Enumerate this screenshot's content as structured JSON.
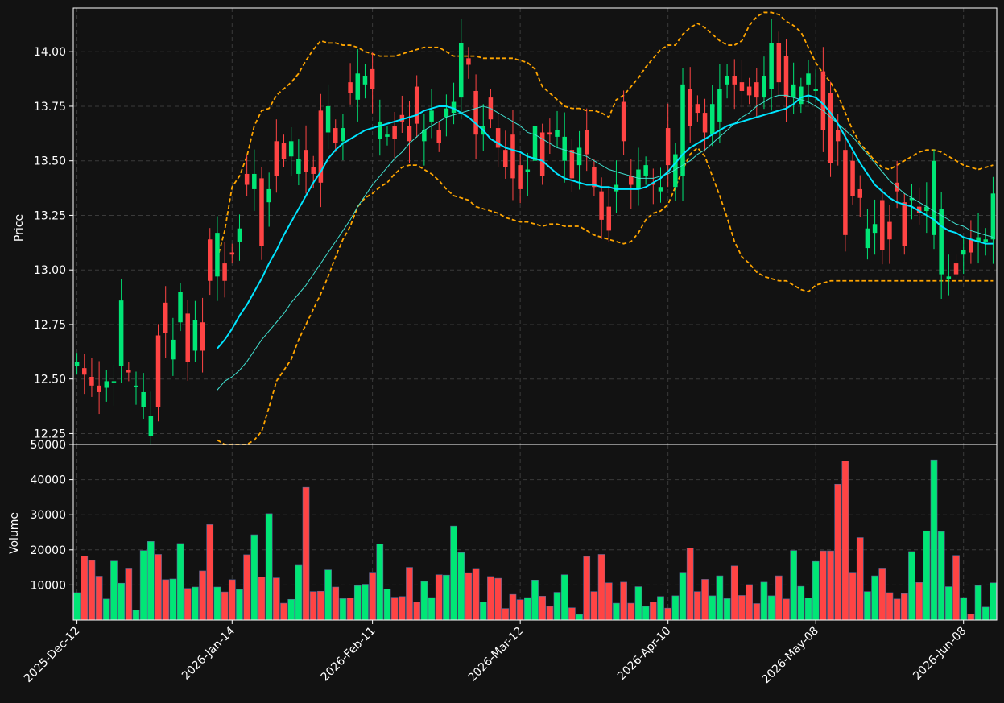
{
  "chart_data": {
    "type": "candlestick",
    "dates": [
      "2025-12-12",
      "2025-12-15",
      "2025-12-16",
      "2025-12-17",
      "2025-12-18",
      "2025-12-19",
      "2025-12-22",
      "2025-12-23",
      "2025-12-24",
      "2025-12-26",
      "2025-12-29",
      "2025-12-30",
      "2025-12-31",
      "2026-01-02",
      "2026-01-05",
      "2026-01-06",
      "2026-01-07",
      "2026-01-08",
      "2026-01-09",
      "2026-01-12",
      "2026-01-13",
      "2026-01-14",
      "2026-01-15",
      "2026-01-16",
      "2026-01-20",
      "2026-01-21",
      "2026-01-22",
      "2026-01-23",
      "2026-01-26",
      "2026-01-27",
      "2026-01-28",
      "2026-01-29",
      "2026-01-30",
      "2026-02-02",
      "2026-02-03",
      "2026-02-04",
      "2026-02-05",
      "2026-02-06",
      "2026-02-09",
      "2026-02-10",
      "2026-02-11",
      "2026-02-12",
      "2026-02-13",
      "2026-02-17",
      "2026-02-18",
      "2026-02-19",
      "2026-02-20",
      "2026-02-23",
      "2026-02-24",
      "2026-02-25",
      "2026-02-26",
      "2026-02-27",
      "2026-03-02",
      "2026-03-03",
      "2026-03-04",
      "2026-03-05",
      "2026-03-06",
      "2026-03-09",
      "2026-03-10",
      "2026-03-11",
      "2026-03-12",
      "2026-03-13",
      "2026-03-16",
      "2026-03-17",
      "2026-03-18",
      "2026-03-19",
      "2026-03-20",
      "2026-03-23",
      "2026-03-24",
      "2026-03-25",
      "2026-03-26",
      "2026-03-27",
      "2026-03-30",
      "2026-03-31",
      "2026-04-01",
      "2026-04-02",
      "2026-04-06",
      "2026-04-07",
      "2026-04-08",
      "2026-04-09",
      "2026-04-10",
      "2026-04-13",
      "2026-04-14",
      "2026-04-15",
      "2026-04-16",
      "2026-04-17",
      "2026-04-20",
      "2026-04-21",
      "2026-04-22",
      "2026-04-23",
      "2026-04-24",
      "2026-04-27",
      "2026-04-28",
      "2026-04-29",
      "2026-04-30",
      "2026-05-01",
      "2026-05-04",
      "2026-05-05",
      "2026-05-06",
      "2026-05-07",
      "2026-05-08",
      "2026-05-11",
      "2026-05-12",
      "2026-05-13",
      "2026-05-14",
      "2026-05-15",
      "2026-05-18",
      "2026-05-19",
      "2026-05-20",
      "2026-05-21",
      "2026-05-22",
      "2026-05-26",
      "2026-05-27",
      "2026-05-28",
      "2026-05-29",
      "2026-06-01",
      "2026-06-02",
      "2026-06-03",
      "2026-06-04",
      "2026-06-05",
      "2026-06-08",
      "2026-06-09",
      "2026-06-10",
      "2026-06-11",
      "2026-06-12"
    ],
    "open": [
      12.56,
      12.55,
      12.51,
      12.47,
      12.46,
      12.49,
      12.56,
      12.54,
      12.47,
      12.37,
      12.24,
      12.7,
      12.85,
      12.59,
      12.76,
      12.8,
      12.63,
      12.76,
      13.14,
      12.97,
      13.03,
      13.08,
      13.13,
      13.44,
      13.37,
      13.42,
      13.31,
      13.59,
      13.58,
      13.52,
      13.44,
      13.55,
      13.47,
      13.73,
      13.63,
      13.65,
      13.59,
      13.86,
      13.78,
      13.85,
      13.92,
      13.6,
      13.61,
      13.66,
      13.71,
      13.66,
      13.84,
      13.59,
      13.68,
      13.64,
      13.7,
      13.72,
      13.79,
      13.97,
      13.82,
      13.62,
      13.79,
      13.65,
      13.55,
      13.62,
      13.48,
      13.45,
      13.5,
      13.63,
      13.63,
      13.61,
      13.5,
      13.55,
      13.48,
      13.64,
      13.47,
      13.36,
      13.29,
      13.36,
      13.77,
      13.43,
      13.37,
      13.43,
      13.4,
      13.36,
      13.65,
      13.38,
      13.43,
      13.83,
      13.76,
      13.72,
      13.62,
      13.68,
      13.85,
      13.89,
      13.86,
      13.84,
      13.86,
      13.79,
      13.83,
      14.04,
      13.98,
      13.79,
      13.76,
      13.85,
      13.82,
      13.91,
      13.81,
      13.64,
      13.55,
      13.5,
      13.37,
      13.1,
      13.17,
      13.32,
      13.22,
      13.4,
      13.31,
      13.32,
      13.29,
      13.27,
      13.16,
      12.98,
      12.96,
      13.03,
      13.07,
      13.14,
      13.13,
      13.13,
      13.14
    ],
    "close": [
      12.58,
      12.52,
      12.47,
      12.44,
      12.49,
      12.49,
      12.86,
      12.53,
      12.47,
      12.44,
      12.33,
      12.37,
      12.71,
      12.68,
      12.9,
      12.58,
      12.77,
      12.63,
      12.95,
      13.17,
      12.95,
      13.07,
      13.19,
      13.39,
      13.44,
      13.11,
      13.37,
      13.43,
      13.51,
      13.59,
      13.51,
      13.45,
      13.44,
      13.4,
      13.75,
      13.58,
      13.65,
      13.81,
      13.9,
      13.89,
      13.83,
      13.68,
      13.62,
      13.6,
      13.68,
      13.59,
      13.67,
      13.64,
      13.73,
      13.58,
      13.74,
      13.77,
      14.04,
      13.94,
      13.62,
      13.66,
      13.69,
      13.56,
      13.47,
      13.42,
      13.37,
      13.46,
      13.66,
      13.43,
      13.62,
      13.64,
      13.61,
      13.42,
      13.56,
      13.53,
      13.38,
      13.23,
      13.18,
      13.39,
      13.59,
      13.39,
      13.46,
      13.48,
      13.39,
      13.38,
      13.48,
      13.53,
      13.85,
      13.66,
      13.72,
      13.63,
      13.76,
      13.83,
      13.89,
      13.85,
      13.82,
      13.8,
      13.79,
      13.89,
      14.04,
      13.86,
      13.79,
      13.85,
      13.84,
      13.9,
      13.83,
      13.64,
      13.49,
      13.59,
      13.16,
      13.34,
      13.33,
      13.19,
      13.21,
      13.09,
      13.14,
      13.36,
      13.11,
      13.33,
      13.26,
      13.29,
      13.5,
      13.28,
      12.97,
      12.98,
      13.09,
      13.08,
      13.15,
      13.14,
      13.35
    ]
  },
  "volume_values": [
    7800,
    18200,
    17000,
    12500,
    6000,
    16800,
    10500,
    14800,
    2800,
    19800,
    22400,
    18700,
    11500,
    11700,
    21800,
    9000,
    9400,
    14000,
    27200,
    9400,
    8000,
    11500,
    8700,
    18600,
    24300,
    12300,
    30300,
    12000,
    4800,
    5900,
    15600,
    37800,
    8100,
    8200,
    14300,
    9400,
    6100,
    6300,
    9800,
    10200,
    13600,
    21700,
    8800,
    6500,
    6700,
    15000,
    5100,
    11000,
    6400,
    12900,
    12800,
    26800,
    19200,
    13500,
    14700,
    5100,
    12400,
    11900,
    3300,
    7300,
    5800,
    6400,
    11400,
    6800,
    3900,
    7900,
    12900,
    3500,
    1600,
    18100,
    8100,
    18700,
    10600,
    4800,
    10800,
    4800,
    9500,
    3900,
    5100,
    6700,
    3400,
    6900,
    13600,
    20500,
    8100,
    11600,
    6900,
    12600,
    6100,
    15400,
    7000,
    10100,
    4700,
    10800,
    6900,
    12600,
    6000,
    19800,
    9600,
    6300,
    16700,
    19700,
    19700,
    38700,
    45300,
    13600,
    23500,
    8100,
    12600,
    14800,
    7800,
    6000,
    7500,
    19500,
    10700,
    25400,
    45600,
    25200,
    9500,
    18400,
    6400,
    1700,
    9800,
    3700,
    10600
  ],
  "sma_fast": [
    null,
    null,
    null,
    null,
    null,
    null,
    null,
    null,
    null,
    null,
    null,
    null,
    null,
    null,
    null,
    null,
    null,
    null,
    null,
    12.45,
    12.49,
    12.51,
    12.54,
    12.58,
    12.63,
    12.68,
    12.72,
    12.76,
    12.8,
    12.85,
    12.89,
    12.93,
    12.98,
    13.03,
    13.08,
    13.13,
    13.18,
    13.23,
    13.29,
    13.34,
    13.39,
    13.43,
    13.47,
    13.51,
    13.54,
    13.58,
    13.61,
    13.64,
    13.66,
    13.68,
    13.7,
    13.71,
    13.72,
    13.73,
    13.74,
    13.75,
    13.74,
    13.72,
    13.7,
    13.68,
    13.66,
    13.63,
    13.62,
    13.6,
    13.58,
    13.56,
    13.55,
    13.54,
    13.53,
    13.52,
    13.5,
    13.48,
    13.46,
    13.45,
    13.44,
    13.43,
    13.42,
    13.42,
    13.42,
    13.43,
    13.44,
    13.46,
    13.48,
    13.5,
    13.53,
    13.55,
    13.58,
    13.61,
    13.64,
    13.67,
    13.7,
    13.72,
    13.75,
    13.77,
    13.79,
    13.8,
    13.8,
    13.79,
    13.78,
    13.77,
    13.75,
    13.73,
    13.7,
    13.67,
    13.64,
    13.61,
    13.57,
    13.53,
    13.49,
    13.45,
    13.41,
    13.38,
    13.35,
    13.33,
    13.31,
    13.29,
    13.27,
    13.25,
    13.23,
    13.21,
    13.2,
    13.18,
    13.17,
    13.16,
    13.15
  ],
  "sma_slow": [
    null,
    null,
    null,
    null,
    null,
    null,
    null,
    null,
    null,
    null,
    null,
    null,
    null,
    null,
    null,
    null,
    null,
    null,
    null,
    12.64,
    12.68,
    12.73,
    12.79,
    12.84,
    12.9,
    12.96,
    13.03,
    13.09,
    13.16,
    13.22,
    13.28,
    13.34,
    13.4,
    13.45,
    13.51,
    13.55,
    13.58,
    13.6,
    13.62,
    13.64,
    13.65,
    13.66,
    13.67,
    13.68,
    13.69,
    13.7,
    13.71,
    13.73,
    13.74,
    13.75,
    13.75,
    13.74,
    13.72,
    13.7,
    13.67,
    13.64,
    13.6,
    13.58,
    13.56,
    13.55,
    13.54,
    13.52,
    13.51,
    13.5,
    13.47,
    13.44,
    13.42,
    13.41,
    13.4,
    13.39,
    13.39,
    13.38,
    13.38,
    13.37,
    13.37,
    13.37,
    13.37,
    13.38,
    13.4,
    13.42,
    13.45,
    13.49,
    13.53,
    13.56,
    13.58,
    13.6,
    13.62,
    13.64,
    13.66,
    13.67,
    13.68,
    13.69,
    13.7,
    13.71,
    13.72,
    13.73,
    13.74,
    13.76,
    13.79,
    13.8,
    13.79,
    13.76,
    13.72,
    13.67,
    13.61,
    13.55,
    13.49,
    13.44,
    13.39,
    13.36,
    13.33,
    13.31,
    13.3,
    13.29,
    13.27,
    13.25,
    13.23,
    13.2,
    13.18,
    13.17,
    13.15,
    13.14,
    13.13,
    13.12,
    13.12
  ],
  "bb_upper": [
    null,
    null,
    null,
    null,
    null,
    null,
    null,
    null,
    null,
    null,
    null,
    null,
    null,
    null,
    null,
    null,
    null,
    null,
    null,
    13.05,
    13.18,
    13.38,
    13.43,
    13.52,
    13.66,
    13.73,
    13.74,
    13.8,
    13.83,
    13.86,
    13.9,
    13.96,
    14.01,
    14.05,
    14.04,
    14.04,
    14.03,
    14.03,
    14.02,
    14.0,
    13.99,
    13.98,
    13.98,
    13.98,
    13.99,
    14.0,
    14.01,
    14.02,
    14.02,
    14.02,
    14.0,
    13.98,
    13.98,
    13.98,
    13.98,
    13.97,
    13.97,
    13.97,
    13.97,
    13.97,
    13.96,
    13.95,
    13.92,
    13.84,
    13.81,
    13.78,
    13.75,
    13.74,
    13.74,
    13.73,
    13.73,
    13.72,
    13.7,
    13.78,
    13.8,
    13.84,
    13.88,
    13.93,
    13.97,
    14.01,
    14.03,
    14.03,
    14.08,
    14.11,
    14.13,
    14.11,
    14.08,
    14.05,
    14.03,
    14.03,
    14.05,
    14.12,
    14.16,
    14.18,
    14.18,
    14.17,
    14.14,
    14.12,
    14.09,
    14.02,
    13.95,
    13.9,
    13.86,
    13.8,
    13.72,
    13.64,
    13.58,
    13.54,
    13.5,
    13.47,
    13.46,
    13.48,
    13.5,
    13.52,
    13.54,
    13.55,
    13.55,
    13.54,
    13.52,
    13.5,
    13.48,
    13.47,
    13.46,
    13.47,
    13.48
  ],
  "bb_lower": [
    null,
    null,
    null,
    null,
    null,
    null,
    null,
    null,
    null,
    null,
    null,
    null,
    null,
    null,
    null,
    null,
    null,
    null,
    null,
    12.22,
    12.2,
    12.18,
    12.18,
    12.2,
    12.22,
    12.26,
    12.37,
    12.49,
    12.54,
    12.59,
    12.68,
    12.75,
    12.82,
    12.89,
    12.97,
    13.06,
    13.14,
    13.2,
    13.29,
    13.33,
    13.35,
    13.38,
    13.4,
    13.44,
    13.47,
    13.48,
    13.48,
    13.46,
    13.44,
    13.41,
    13.37,
    13.34,
    13.33,
    13.32,
    13.29,
    13.28,
    13.27,
    13.26,
    13.24,
    13.23,
    13.22,
    13.22,
    13.21,
    13.2,
    13.21,
    13.21,
    13.2,
    13.2,
    13.2,
    13.18,
    13.16,
    13.15,
    13.14,
    13.13,
    13.12,
    13.13,
    13.17,
    13.23,
    13.26,
    13.27,
    13.3,
    13.38,
    13.46,
    13.53,
    13.56,
    13.52,
    13.43,
    13.34,
    13.24,
    13.13,
    13.06,
    13.03,
    12.99,
    12.97,
    12.96,
    12.95,
    12.95,
    12.93,
    12.91,
    12.9,
    12.93,
    12.94,
    12.95,
    12.95,
    12.95,
    12.95,
    12.95,
    12.95,
    12.95,
    12.95,
    12.95,
    12.95,
    12.95,
    12.95,
    12.95,
    12.95,
    12.95,
    12.95,
    12.95,
    12.95,
    12.95,
    12.95,
    12.95,
    12.95,
    12.95
  ],
  "axes": {
    "price_label": "Price",
    "volume_label": "Volume",
    "price_ticks": [
      "12.25",
      "12.50",
      "12.75",
      "13.00",
      "13.25",
      "13.50",
      "13.75",
      "14.00"
    ],
    "volume_ticks": [
      "10000",
      "20000",
      "30000",
      "40000",
      "50000"
    ],
    "x_ticks": [
      "2025-Dec-12",
      "2026-Jan-14",
      "2026-Feb-11",
      "2026-Mar-12",
      "2026-Apr-10",
      "2026-May-08",
      "2026-Jun-08"
    ],
    "price_ylim": [
      12.2,
      14.2
    ],
    "volume_ylim": [
      0,
      50000
    ]
  },
  "colors": {
    "up": "#00e676",
    "down": "#ff4444",
    "sma_fast": "#40e0d0",
    "sma_slow": "#00e5ff",
    "bands": "#ffa500",
    "background": "#121212"
  }
}
